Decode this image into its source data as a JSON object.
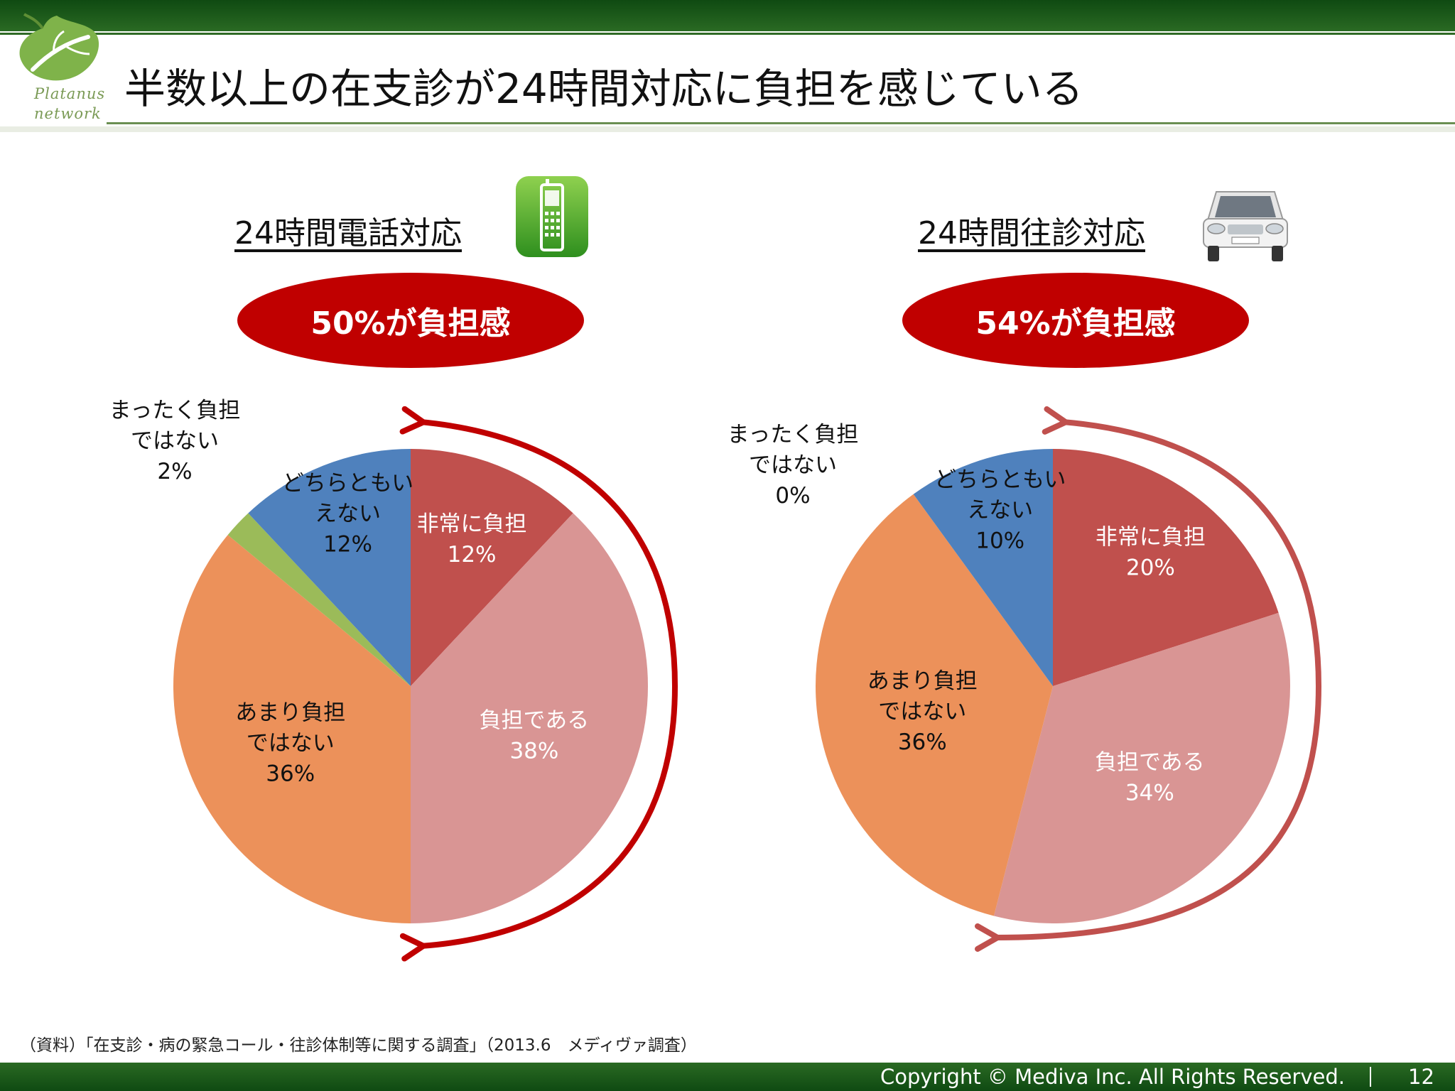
{
  "header": {
    "title": "半数以上の在支診が24時間対応に負担を感じている",
    "logo_text_line1": "Platanus",
    "logo_text_line2": "network",
    "logo_icon": "leaf-icon"
  },
  "panels": [
    {
      "subtitle": "24時間電話対応",
      "icon": "phone-icon",
      "summary": "50%が負担感"
    },
    {
      "subtitle": "24時間往診対応",
      "icon": "car-icon",
      "summary": "54%が負担感"
    }
  ],
  "chart_data": [
    {
      "type": "pie",
      "title": "24時間電話対応",
      "slices": [
        {
          "label": "非常に負担",
          "value": 12,
          "display": "12%",
          "color": "#c0504d"
        },
        {
          "label": "負担である",
          "value": 38,
          "display": "38%",
          "color": "#d99594"
        },
        {
          "label": "あまり負担ではない",
          "value": 36,
          "display": "36%",
          "color": "#ec915a"
        },
        {
          "label": "まったく負担ではない",
          "value": 2,
          "display": "2%",
          "color": "#9bbb59"
        },
        {
          "label": "どちらともいえない",
          "value": 12,
          "display": "12%",
          "color": "#4f81bd"
        }
      ]
    },
    {
      "type": "pie",
      "title": "24時間往診対応",
      "slices": [
        {
          "label": "非常に負担",
          "value": 20,
          "display": "20%",
          "color": "#c0504d"
        },
        {
          "label": "負担である",
          "value": 34,
          "display": "34%",
          "color": "#d99594"
        },
        {
          "label": "あまり負担ではない",
          "value": 36,
          "display": "36%",
          "color": "#ec915a"
        },
        {
          "label": "まったく負担ではない",
          "value": 0,
          "display": "0%",
          "color": "#9bbb59"
        },
        {
          "label": "どちらともいえない",
          "value": 10,
          "display": "10%",
          "color": "#4f81bd"
        }
      ]
    }
  ],
  "slice_label_lines": {
    "非常に負担": [
      "非常に負担"
    ],
    "負担である": [
      "負担である"
    ],
    "あまり負担ではない": [
      "あまり負担",
      "ではない"
    ],
    "まったく負担ではない": [
      "まったく負担",
      "ではない"
    ],
    "どちらともいえない": [
      "どちらともい",
      "えない"
    ]
  },
  "footnote": "（資料）「在支診・病の緊急コール・往診体制等に関する調査」（2013.6　メディヴァ調査）",
  "footer": {
    "copyright": "Copyright © Mediva Inc. All Rights Reserved.",
    "page_number": "12"
  }
}
